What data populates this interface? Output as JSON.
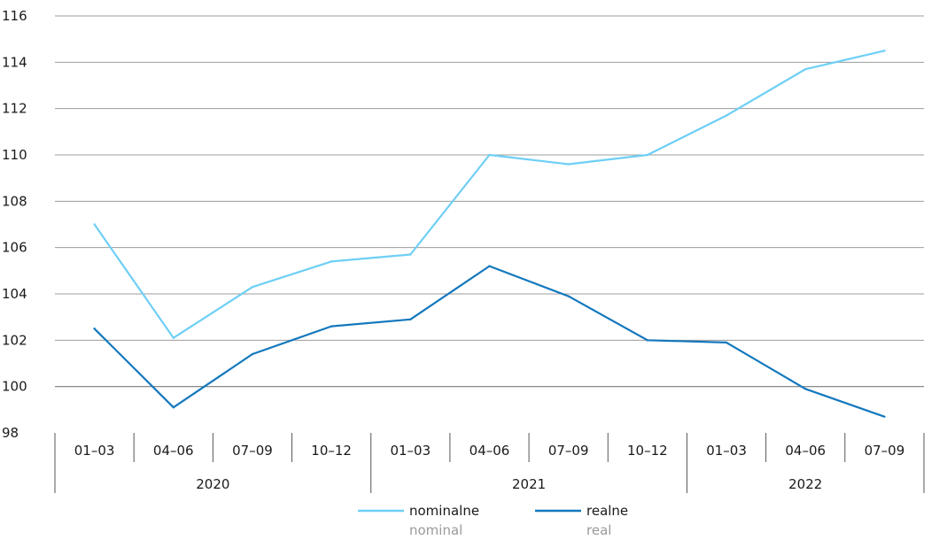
{
  "chart_data": {
    "type": "line",
    "categories": [
      "01–03",
      "04–06",
      "07–09",
      "10–12",
      "01–03",
      "04–06",
      "07–09",
      "10–12",
      "01–03",
      "04–06",
      "07–09"
    ],
    "years": [
      {
        "label": "2020",
        "count": 4
      },
      {
        "label": "2021",
        "count": 4
      },
      {
        "label": "2022",
        "count": 3
      }
    ],
    "ylim": [
      98,
      116
    ],
    "yticks": [
      98,
      100,
      102,
      104,
      106,
      108,
      110,
      112,
      114,
      116
    ],
    "grid": true,
    "legend_position": "bottom",
    "series": [
      {
        "name": "nominalne",
        "name_en": "nominal",
        "color": "#6ecff6",
        "values": [
          107.0,
          102.1,
          104.3,
          105.4,
          105.7,
          110.0,
          109.6,
          110.0,
          111.7,
          113.7,
          114.5
        ]
      },
      {
        "name": "realne",
        "name_en": "real",
        "color": "#1378bd",
        "values": [
          102.5,
          99.1,
          101.4,
          102.6,
          102.9,
          105.2,
          103.9,
          102.0,
          101.9,
          99.9,
          98.7
        ]
      }
    ]
  }
}
